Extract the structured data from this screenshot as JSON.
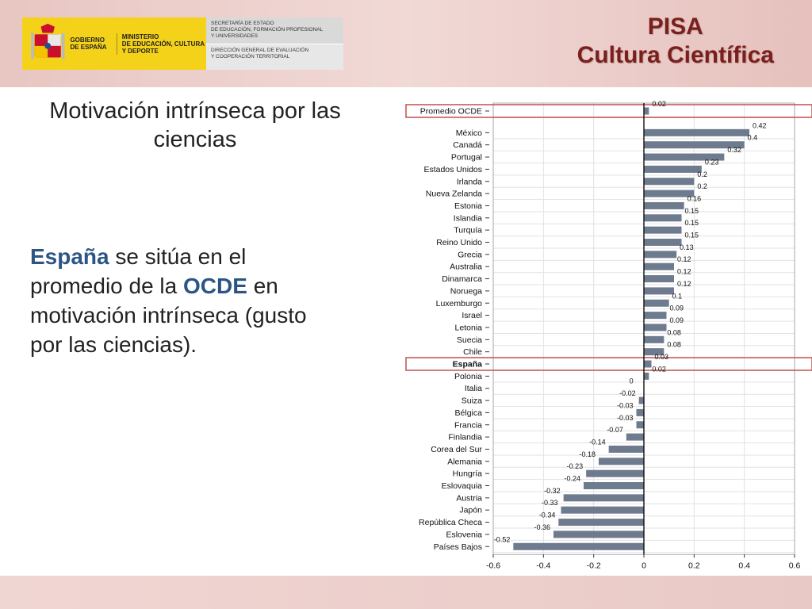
{
  "header": {
    "logo": {
      "gobierno": "GOBIERNO\nDE ESPAÑA",
      "ministerio": "MINISTERIO\nDE EDUCACIÓN, CULTURA\nY DEPORTE",
      "secretaria": "SECRETARÍA DE ESTADO\nDE EDUCACIÓN, FORMACIÓN PROFESIONAL\nY UNIVERSIDADES",
      "direccion": "DIRECCIÓN GENERAL DE EVALUACIÓN\nY COOPERACIÓN TERRITORIAL"
    },
    "title_line1": "PISA",
    "title_line2": "Cultura Científica"
  },
  "slide": {
    "heading": "Motivación intrínseca por las ciencias",
    "body": {
      "part1": "España",
      "part2": " se sitúa en el promedio de la ",
      "part3": "OCDE",
      "part4": " en motivación intrínseca (gusto por las ciencias)."
    }
  },
  "colors": {
    "bar": "#6e7b8e",
    "highlight_box": "#c0504d",
    "title": "#7b1f1d",
    "accent_text": "#2c5585"
  },
  "chart_data": {
    "type": "bar",
    "orientation": "horizontal",
    "categories": [
      "Promedio OCDE",
      "México",
      "Canadá",
      "Portugal",
      "Estados Unidos",
      "Irlanda",
      "Nueva Zelanda",
      "Estonia",
      "Islandia",
      "Turquía",
      "Reino Unido",
      "Grecia",
      "Australia",
      "Dinamarca",
      "Noruega",
      "Luxemburgo",
      "Israel",
      "Letonia",
      "Suecia",
      "Chile",
      "España",
      "Polonia",
      "Italia",
      "Suiza",
      "Bélgica",
      "Francia",
      "Finlandia",
      "Corea del Sur",
      "Alemania",
      "Hungría",
      "Eslovaquia",
      "Austria",
      "Japón",
      "República Checa",
      "Eslovenia",
      "Países Bajos"
    ],
    "values": [
      0.02,
      0.42,
      0.4,
      0.32,
      0.23,
      0.2,
      0.2,
      0.16,
      0.15,
      0.15,
      0.15,
      0.13,
      0.12,
      0.12,
      0.12,
      0.1,
      0.09,
      0.09,
      0.08,
      0.08,
      0.03,
      0.02,
      0,
      -0.02,
      -0.03,
      -0.03,
      -0.07,
      -0.14,
      -0.18,
      -0.23,
      -0.24,
      -0.32,
      -0.33,
      -0.34,
      -0.36,
      -0.52
    ],
    "value_labels": [
      "0.02",
      "0.42",
      "0.4",
      "0.32",
      "0.23",
      "0.2",
      "0.2",
      "0.16",
      "0.15",
      "0.15",
      "0.15",
      "0.13",
      "0.12",
      "0.12",
      "0.12",
      "0.1",
      "0.09",
      "0.09",
      "0.08",
      "0.08",
      "0.03",
      "0.02",
      "0",
      "-0.02",
      "-0.03",
      "-0.03",
      "-0.07",
      "-0.14",
      "-0.18",
      "-0.23",
      "-0.24",
      "-0.32",
      "-0.33",
      "-0.34",
      "-0.36",
      "-0.52"
    ],
    "highlighted": [
      "Promedio OCDE",
      "España"
    ],
    "bold_categories": [
      "España"
    ],
    "xlim": [
      -0.6,
      0.6
    ],
    "xticks": [
      "-0.6",
      "-0.4",
      "-0.2",
      "0",
      "0.2",
      "0.4",
      "0.6"
    ],
    "grid": true
  }
}
